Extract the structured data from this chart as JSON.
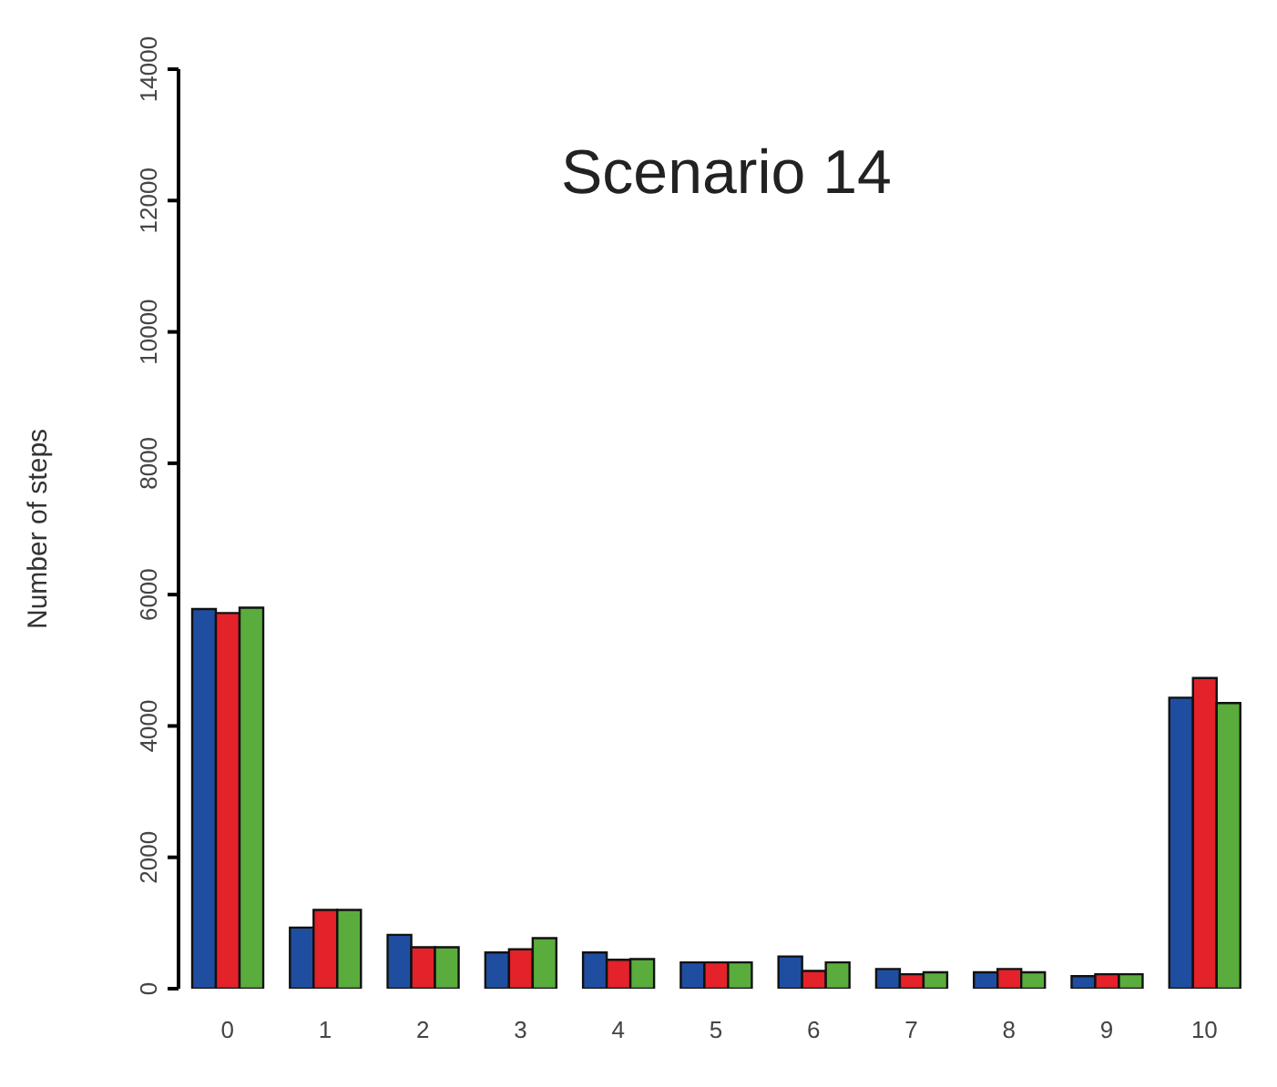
{
  "chart_data": {
    "type": "bar",
    "title": "Scenario 14",
    "ylabel": "Number of steps",
    "categories": [
      "0",
      "1",
      "2",
      "3",
      "4",
      "5",
      "6",
      "7",
      "8",
      "9",
      "10"
    ],
    "series": [
      {
        "color": "#1f4ea0",
        "values": [
          5780,
          930,
          820,
          550,
          550,
          400,
          490,
          300,
          250,
          190,
          4430
        ]
      },
      {
        "color": "#e3222a",
        "values": [
          5720,
          1200,
          630,
          600,
          440,
          400,
          270,
          220,
          300,
          220,
          4730
        ]
      },
      {
        "color": "#5aac3c",
        "values": [
          5800,
          1200,
          630,
          770,
          450,
          400,
          400,
          250,
          250,
          220,
          4350
        ]
      }
    ],
    "ylim": [
      0,
      14000
    ],
    "yticks": [
      0,
      2000,
      4000,
      6000,
      8000,
      10000,
      12000,
      14000
    ],
    "grid": false,
    "legend": false
  }
}
